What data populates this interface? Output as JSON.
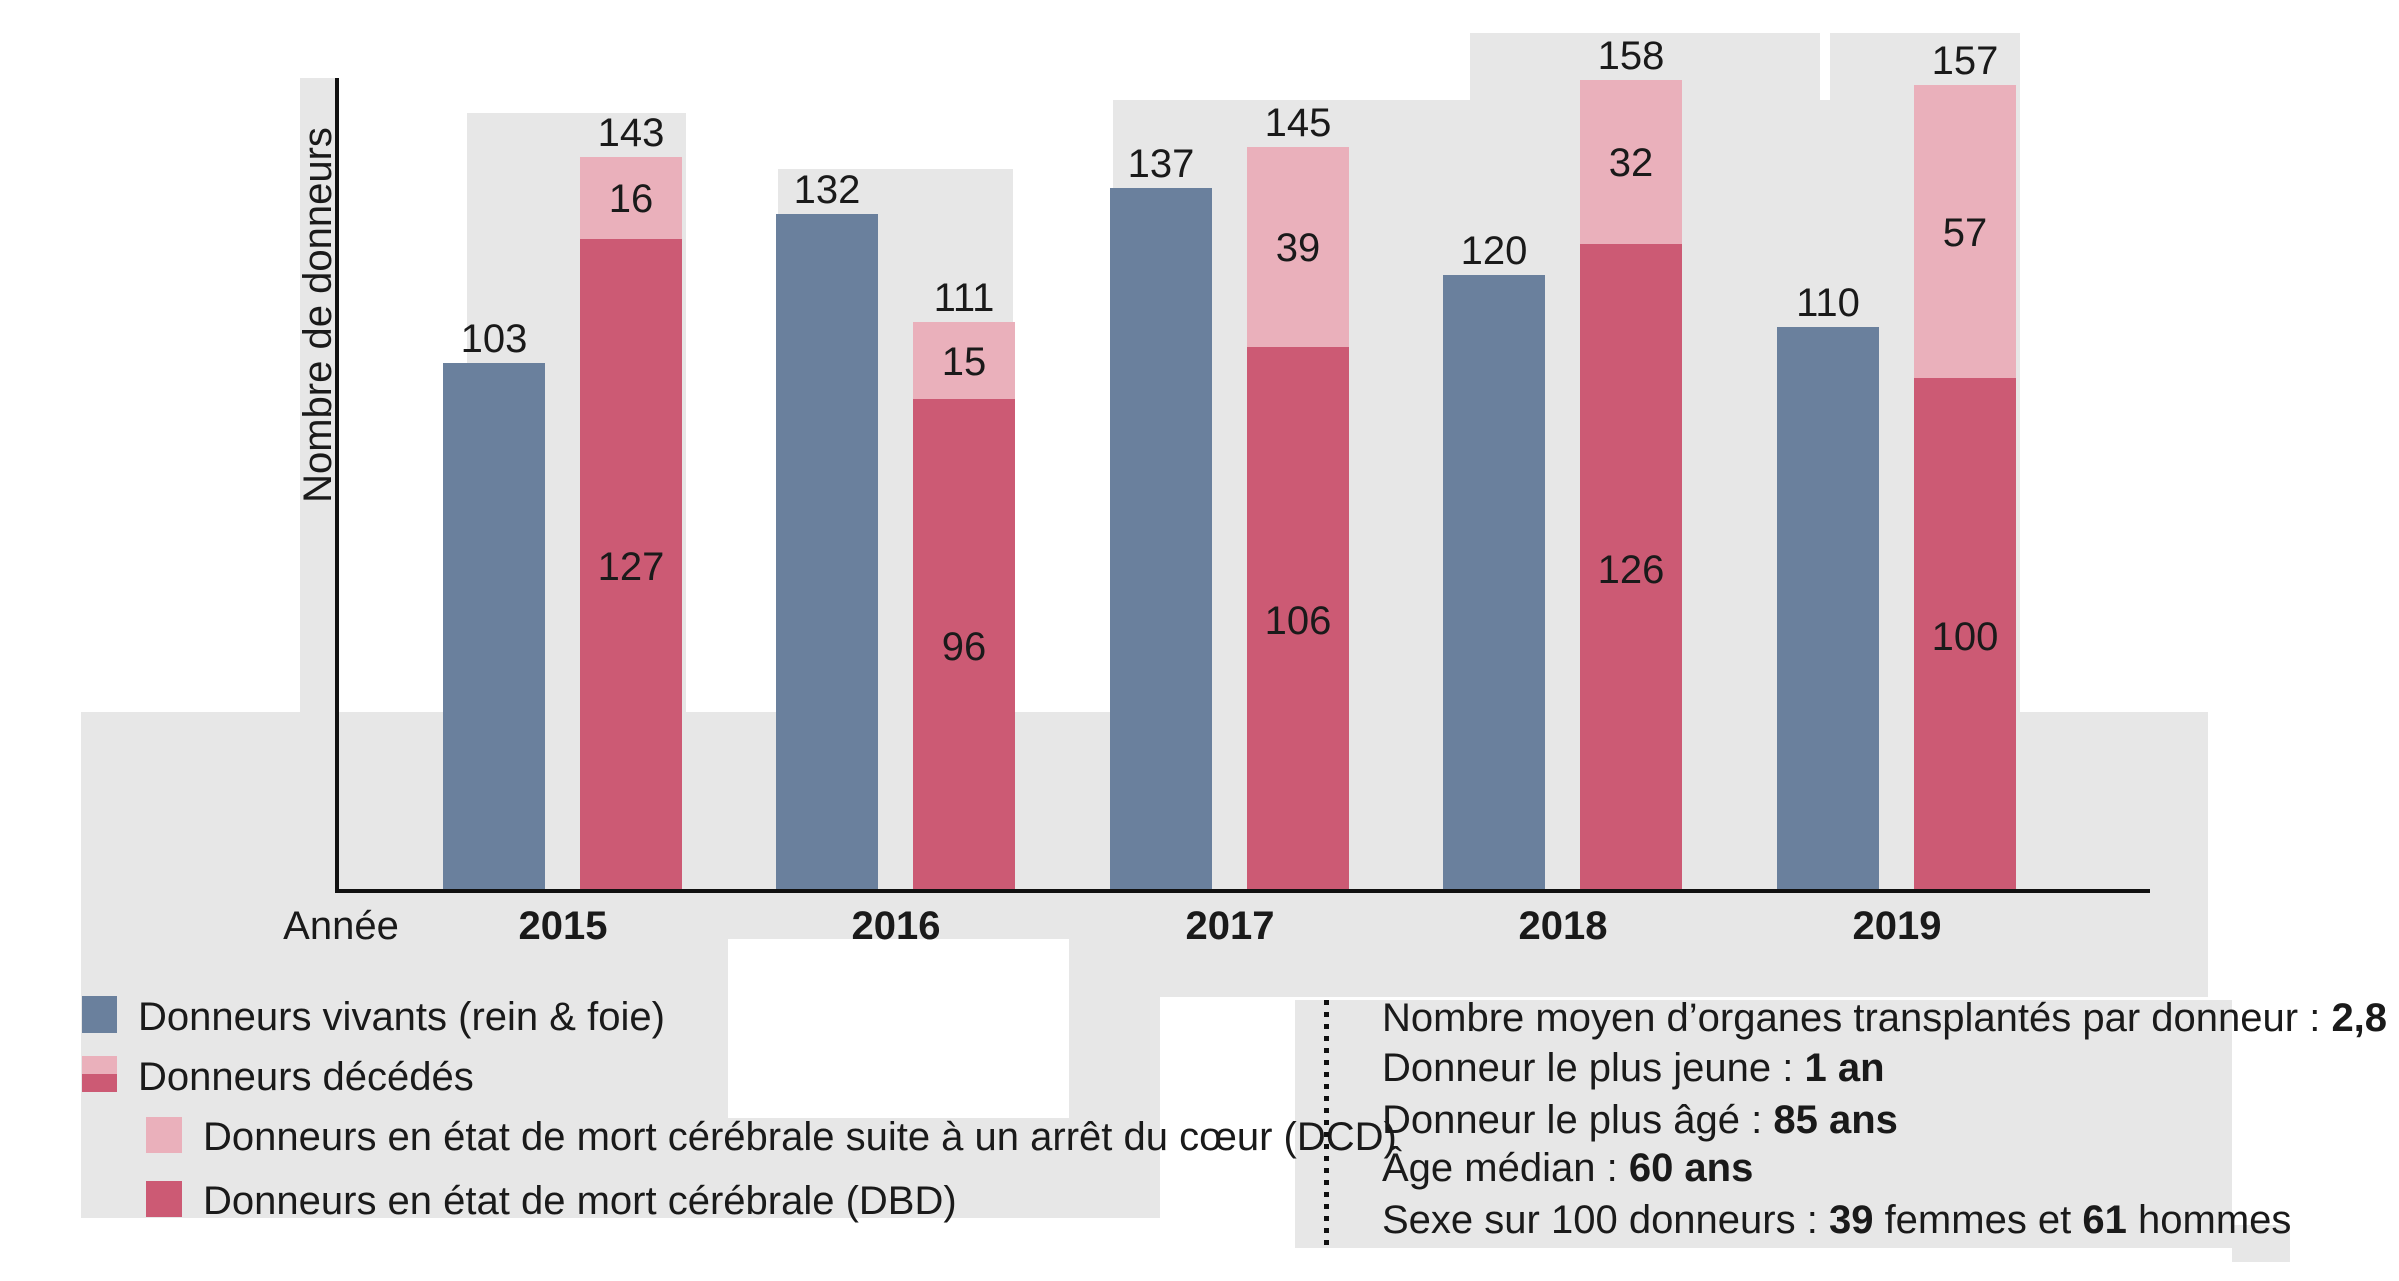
{
  "chart_data": {
    "type": "bar",
    "subtype": "grouped-with-stacked-deceased",
    "title": "",
    "xlabel": "Année",
    "ylabel": "Nombre de donneurs",
    "categories": [
      "2015",
      "2016",
      "2017",
      "2018",
      "2019"
    ],
    "series": [
      {
        "name": "Donneurs vivants (rein & foie)",
        "values": [
          103,
          132,
          137,
          120,
          110
        ]
      },
      {
        "name": "Donneurs en état de mort cérébrale (DBD)",
        "values": [
          127,
          96,
          106,
          126,
          100
        ]
      },
      {
        "name": "Donneurs en état de mort cérébrale suite à un arrêt du cœur (DCD)",
        "values": [
          16,
          15,
          39,
          32,
          57
        ]
      }
    ],
    "deceased_totals": [
      143,
      111,
      145,
      158,
      157
    ],
    "ylim": [
      0,
      165
    ],
    "grid": false,
    "legend_position": "bottom-left",
    "axis_labels_shown": false
  },
  "colors": {
    "living": "#6a809d",
    "dbd": "#cc5a74",
    "dcd": "#eab0bb",
    "background_block": "#e7e7e7",
    "axis": "#111111",
    "text": "#1a1a1a"
  },
  "axis": {
    "x_title": "Année",
    "y_title": "Nombre de donneurs"
  },
  "legend": {
    "items": [
      {
        "label": "Donneurs vivants (rein & foie)",
        "swatch": "living"
      },
      {
        "label": "Donneurs décédés",
        "swatch": "split"
      },
      {
        "label": "Donneurs en état de mort cérébrale suite à un arrêt du cœur (DCD)",
        "swatch": "dcd"
      },
      {
        "label": "Donneurs en état de mort cérébrale (DBD)",
        "swatch": "dbd"
      }
    ]
  },
  "stats": {
    "lines": [
      {
        "parts": [
          "Nombre moyen d’organes transplantés par donneur : ",
          "2,8"
        ]
      },
      {
        "parts": [
          "Donneur le plus jeune : ",
          "1 an"
        ]
      },
      {
        "parts": [
          "Donneur le plus âgé : ",
          "85 ans"
        ]
      },
      {
        "parts": [
          "Âge médian : ",
          "60 ans"
        ]
      },
      {
        "parts": [
          "Sexe sur 100 donneurs : ",
          "39",
          " femmes et ",
          "61",
          " hommes"
        ]
      }
    ]
  }
}
